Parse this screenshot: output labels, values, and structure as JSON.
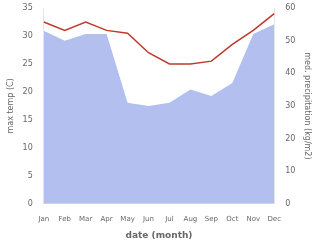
{
  "chart_data": {
    "type": "line",
    "categories": [
      "Jan",
      "Feb",
      "Mar",
      "Apr",
      "May",
      "Jun",
      "Jul",
      "Aug",
      "Sep",
      "Oct",
      "Nov",
      "Dec"
    ],
    "series": [
      {
        "type": "area",
        "axis": "y2",
        "color": "#b3bfee",
        "values": [
          53,
          50,
          52,
          52,
          31,
          30,
          31,
          35,
          33,
          37,
          52,
          55
        ]
      },
      {
        "type": "line",
        "axis": "y",
        "color": "#c0392b",
        "values": [
          32.5,
          31,
          32.5,
          31,
          30.5,
          27,
          25,
          25,
          25.5,
          28.5,
          31,
          34
        ]
      }
    ],
    "xlabel": "date (month)",
    "ylabel": "max temp (C)",
    "y2label": "med. precipitation (kg/m2)",
    "ylim": [
      0,
      35
    ],
    "yticks": [
      0,
      5,
      10,
      15,
      20,
      25,
      30,
      35
    ],
    "y2lim": [
      0,
      60
    ],
    "y2ticks": [
      0,
      10,
      20,
      30,
      40,
      50,
      60
    ],
    "grid": false
  }
}
